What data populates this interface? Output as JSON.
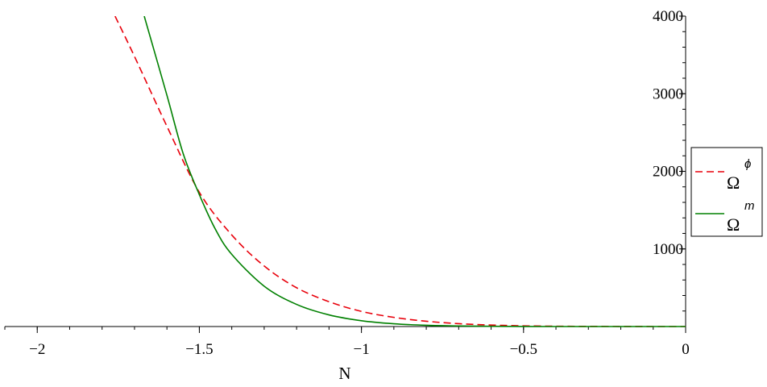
{
  "chart_data": {
    "type": "line",
    "title": "",
    "xlabel": "N",
    "ylabel": "",
    "xlim": [
      -2.1,
      0
    ],
    "ylim": [
      0,
      4000
    ],
    "x_ticks": [
      {
        "value": -2,
        "label": "−2"
      },
      {
        "value": -1.5,
        "label": "−1.5"
      },
      {
        "value": -1,
        "label": "−1"
      },
      {
        "value": -0.5,
        "label": "−0.5"
      },
      {
        "value": 0,
        "label": "0"
      }
    ],
    "y_ticks": [
      {
        "value": 1000,
        "label": "1000"
      },
      {
        "value": 2000,
        "label": "2000"
      },
      {
        "value": 3000,
        "label": "3000"
      },
      {
        "value": 4000,
        "label": "4000"
      }
    ],
    "grid": false,
    "legend_position": "right",
    "series": [
      {
        "name": "Ω",
        "superscript": "ϕ",
        "color": "#e8000b",
        "dash": "dashed",
        "x": [
          -1.76,
          -1.7,
          -1.6,
          -1.5,
          -1.4,
          -1.3,
          -1.2,
          -1.1,
          -1.0,
          -0.9,
          -0.8,
          -0.7,
          -0.6,
          -0.5,
          -0.4,
          -0.3,
          -0.2,
          -0.1,
          0
        ],
        "y": [
          4000,
          3480,
          2580,
          1730,
          1180,
          780,
          500,
          320,
          195,
          118,
          68,
          37,
          19,
          9,
          4,
          2,
          1,
          0,
          0
        ]
      },
      {
        "name": "Ω",
        "superscript": "m",
        "color": "#008000",
        "dash": "solid",
        "x": [
          -1.67,
          -1.6,
          -1.55,
          -1.5,
          -1.45,
          -1.4,
          -1.3,
          -1.2,
          -1.1,
          -1.0,
          -0.9,
          -0.8,
          -0.7,
          -0.6,
          -0.5,
          -0.4,
          -0.3,
          -0.2,
          -0.1,
          0
        ],
        "y": [
          4000,
          2980,
          2230,
          1700,
          1250,
          930,
          520,
          285,
          150,
          75,
          36,
          16,
          7,
          3,
          1,
          0,
          0,
          0,
          0,
          0
        ]
      }
    ]
  }
}
